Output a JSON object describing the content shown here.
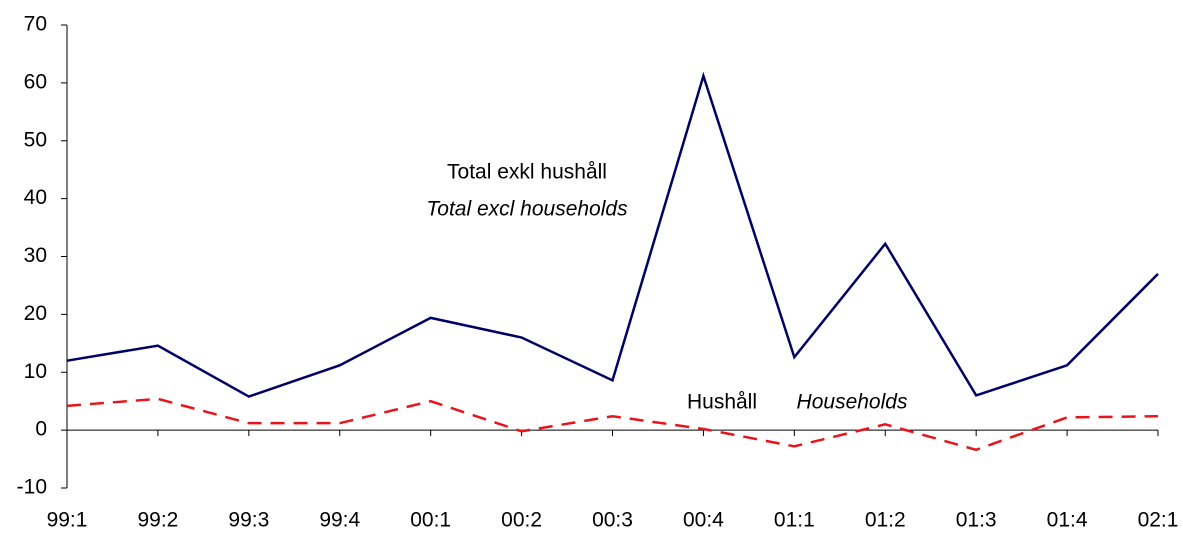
{
  "chart_data": {
    "type": "line",
    "categories": [
      "99:1",
      "99:2",
      "99:3",
      "99:4",
      "00:1",
      "00:2",
      "00:3",
      "00:4",
      "01:1",
      "01:2",
      "01:3",
      "01:4",
      "02:1"
    ],
    "series": [
      {
        "color": "#000066",
        "dash": false,
        "values": [
          12,
          14.6,
          5.8,
          11.2,
          19.4,
          16,
          8.6,
          61.2,
          12.6,
          32.2,
          6,
          11.2,
          27
        ]
      },
      {
        "color": "#e8141c",
        "dash": true,
        "values": [
          4.2,
          5.4,
          1.2,
          1.2,
          5,
          -0.2,
          2.4,
          0.2,
          -2.8,
          1,
          -3.4,
          2.2,
          2.4
        ]
      }
    ],
    "annotations": [
      {
        "text": "Total exkl hushåll",
        "italic": false
      },
      {
        "text": "Total excl households",
        "italic": true
      },
      {
        "text": "Hushåll",
        "italic": false
      },
      {
        "text": "Households",
        "italic": true
      }
    ],
    "ylim": [
      -10,
      70
    ],
    "yticks": [
      -10,
      0,
      10,
      20,
      30,
      40,
      50,
      60,
      70
    ],
    "grid": false
  }
}
